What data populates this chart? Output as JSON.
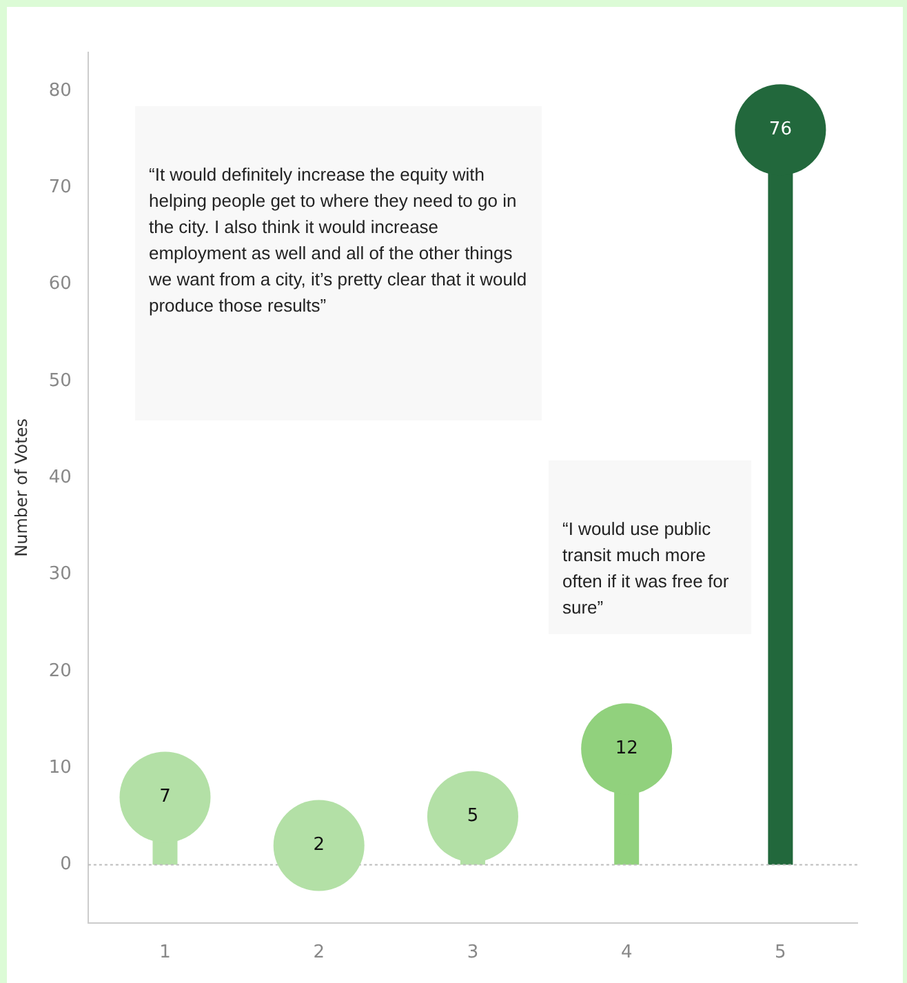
{
  "chart_data": {
    "type": "lollipop",
    "ylabel": "Number of Votes",
    "categories": [
      "1",
      "2",
      "3",
      "4",
      "5"
    ],
    "values": [
      7,
      2,
      5,
      12,
      76
    ],
    "colors": [
      "#b3e0a6",
      "#b3e0a6",
      "#b3e0a6",
      "#91d17d",
      "#22683c"
    ],
    "ylim": [
      -6,
      84
    ],
    "yticks": [
      0,
      10,
      20,
      30,
      40,
      50,
      60,
      70,
      80
    ],
    "data_labels": true,
    "grid": false,
    "legend": false,
    "marker": "circle",
    "ref_lines": [
      {
        "axis": "y",
        "value": 0,
        "color": "#bbbbbb",
        "line_style": "dotted"
      }
    ],
    "annotations": [
      {
        "text": "“It would definitely increase the equity with helping people get to where they need to go in the city. I also think it would increase employment as well and all of the other things we want from a city, it’s pretty clear that it would produce those results”"
      },
      {
        "text": "“I would use public transit much more often if it was free for sure”"
      }
    ]
  }
}
